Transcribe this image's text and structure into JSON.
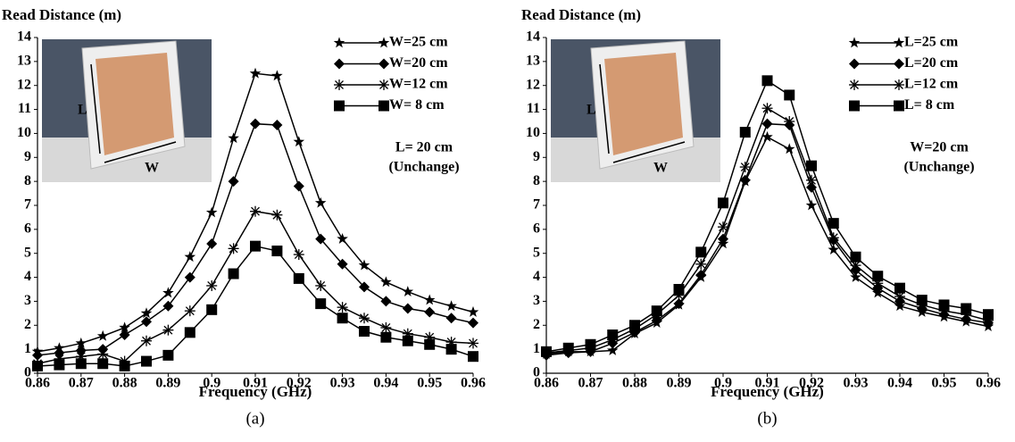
{
  "chart_data": [
    {
      "type": "line",
      "title": "Read Distance (m)",
      "xlabel": "Frequency (GHz)",
      "panel_label": "(a)",
      "x": [
        0.86,
        0.865,
        0.87,
        0.875,
        0.88,
        0.885,
        0.89,
        0.895,
        0.9,
        0.905,
        0.91,
        0.915,
        0.92,
        0.925,
        0.93,
        0.935,
        0.94,
        0.945,
        0.95,
        0.955,
        0.96
      ],
      "xlim": [
        0.86,
        0.96
      ],
      "xticks": [
        0.86,
        0.87,
        0.88,
        0.89,
        0.9,
        0.91,
        0.92,
        0.93,
        0.94,
        0.95,
        0.96
      ],
      "ylim": [
        0,
        14
      ],
      "yticks": [
        0,
        1,
        2,
        3,
        4,
        5,
        6,
        7,
        8,
        9,
        10,
        11,
        12,
        13,
        14
      ],
      "legend": "upper right",
      "series": [
        {
          "name": "W=25 cm",
          "color": "#000000",
          "marker": "star",
          "values": [
            0.9,
            1.05,
            1.25,
            1.55,
            1.9,
            2.5,
            3.35,
            4.85,
            6.7,
            9.8,
            12.5,
            12.4,
            9.65,
            7.1,
            5.6,
            4.5,
            3.8,
            3.4,
            3.05,
            2.8,
            2.55
          ]
        },
        {
          "name": "W=20 cm",
          "color": "#000000",
          "marker": "diamond",
          "values": [
            0.75,
            0.85,
            0.95,
            1.0,
            1.6,
            2.15,
            2.8,
            4.0,
            5.4,
            8.0,
            10.4,
            10.35,
            7.8,
            5.6,
            4.55,
            3.6,
            3.0,
            2.7,
            2.55,
            2.3,
            2.1
          ]
        },
        {
          "name": "W=12 cm",
          "color": "#000000",
          "marker": "asterisk",
          "values": [
            0.4,
            0.6,
            0.7,
            0.8,
            0.5,
            1.35,
            1.8,
            2.6,
            3.65,
            5.2,
            6.75,
            6.6,
            4.95,
            3.65,
            2.75,
            2.3,
            1.9,
            1.65,
            1.5,
            1.3,
            1.25
          ]
        },
        {
          "name": "W= 8 cm",
          "color": "#000000",
          "marker": "square",
          "values": [
            0.3,
            0.35,
            0.4,
            0.4,
            0.3,
            0.5,
            0.75,
            1.7,
            2.65,
            4.15,
            5.3,
            5.1,
            3.95,
            2.9,
            2.3,
            1.75,
            1.5,
            1.35,
            1.2,
            1.0,
            0.7
          ]
        }
      ],
      "annotations": [
        "L= 20 cm",
        "(Unchange)"
      ],
      "inset_labels": [
        "L",
        "W"
      ]
    },
    {
      "type": "line",
      "title": "Read Distance (m)",
      "xlabel": "Frequency (GHz)",
      "panel_label": "(b)",
      "x": [
        0.86,
        0.865,
        0.87,
        0.875,
        0.88,
        0.885,
        0.89,
        0.895,
        0.9,
        0.905,
        0.91,
        0.915,
        0.92,
        0.925,
        0.93,
        0.935,
        0.94,
        0.945,
        0.95,
        0.955,
        0.96
      ],
      "xlim": [
        0.86,
        0.96
      ],
      "xticks": [
        0.86,
        0.87,
        0.88,
        0.89,
        0.9,
        0.91,
        0.92,
        0.93,
        0.94,
        0.95,
        0.96
      ],
      "ylim": [
        0,
        14
      ],
      "yticks": [
        0,
        1,
        2,
        3,
        4,
        5,
        6,
        7,
        8,
        9,
        10,
        11,
        12,
        13,
        14
      ],
      "legend": "upper right",
      "series": [
        {
          "name": "L=25 cm",
          "color": "#000000",
          "marker": "star",
          "values": [
            0.8,
            0.9,
            0.9,
            0.95,
            1.65,
            2.1,
            2.85,
            4.0,
            5.4,
            8.0,
            9.85,
            9.35,
            7.0,
            5.15,
            4.0,
            3.35,
            2.8,
            2.55,
            2.35,
            2.15,
            1.95
          ]
        },
        {
          "name": "L=20 cm",
          "color": "#000000",
          "marker": "diamond",
          "values": [
            0.75,
            0.85,
            0.9,
            1.25,
            1.7,
            2.2,
            2.9,
            4.1,
            5.6,
            8.05,
            10.4,
            10.35,
            7.75,
            5.55,
            4.3,
            3.55,
            3.0,
            2.7,
            2.45,
            2.25,
            2.1
          ]
        },
        {
          "name": "L=12 cm",
          "color": "#000000",
          "marker": "asterisk",
          "values": [
            0.85,
            0.95,
            1.05,
            1.4,
            1.85,
            2.45,
            3.25,
            4.55,
            6.1,
            8.6,
            11.05,
            10.5,
            8.05,
            5.65,
            4.5,
            3.75,
            3.2,
            2.85,
            2.6,
            2.45,
            2.2
          ]
        },
        {
          "name": "L= 8 cm",
          "color": "#000000",
          "marker": "square",
          "values": [
            0.9,
            1.05,
            1.2,
            1.6,
            2.0,
            2.6,
            3.5,
            5.05,
            7.1,
            10.05,
            12.2,
            11.6,
            8.65,
            6.25,
            4.85,
            4.05,
            3.55,
            3.05,
            2.85,
            2.7,
            2.45
          ]
        }
      ],
      "annotations": [
        "W=20 cm",
        "(Unchange)"
      ],
      "inset_labels": [
        "L",
        "W"
      ]
    }
  ]
}
